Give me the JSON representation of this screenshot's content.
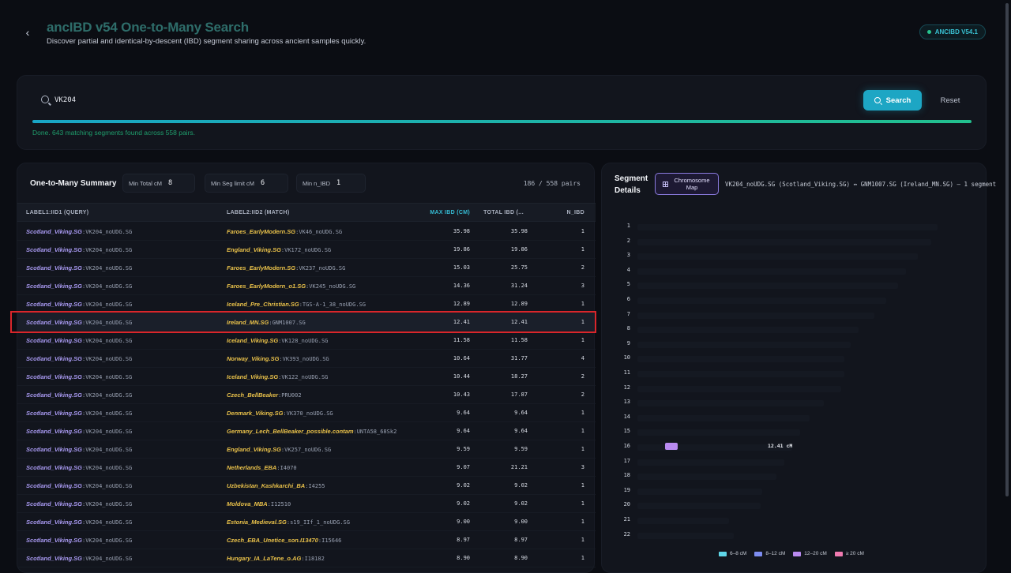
{
  "header": {
    "title": "ancIBD v54 One-to-Many Search",
    "subtitle": "Discover partial and identical-by-descent (IBD) segment sharing across ancient samples quickly.",
    "version_badge": "ANCIBD V54.1"
  },
  "search": {
    "value": "VK204",
    "search_label": "Search",
    "reset_label": "Reset",
    "progress": 1.0,
    "status": "Done. 643 matching segments found across 558 pairs."
  },
  "summary": {
    "title": "One-to-Many Summary",
    "filters": [
      {
        "label": "Min Total cM",
        "value": "8"
      },
      {
        "label": "Min Seg limit cM",
        "value": "6"
      },
      {
        "label": "Min n_IBD",
        "value": "1"
      }
    ],
    "pair_count": "186 / 558 pairs",
    "columns": [
      "LABEL1:IID1 (QUERY)",
      "LABEL2:IID2 (MATCH)",
      "MAX IBD (CM)",
      "TOTAL IBD (...",
      "N_IBD"
    ],
    "rows": [
      {
        "q_label": "Scotland_Viking.SG",
        "q_iid": "VK204_noUDG.SG",
        "m_label": "Faroes_EarlyModern.SG",
        "m_iid": "VK46_noUDG.SG",
        "max": "35.98",
        "total": "35.98",
        "n": "1"
      },
      {
        "q_label": "Scotland_Viking.SG",
        "q_iid": "VK204_noUDG.SG",
        "m_label": "England_Viking.SG",
        "m_iid": "VK172_noUDG.SG",
        "max": "19.86",
        "total": "19.86",
        "n": "1"
      },
      {
        "q_label": "Scotland_Viking.SG",
        "q_iid": "VK204_noUDG.SG",
        "m_label": "Faroes_EarlyModern.SG",
        "m_iid": "VK237_noUDG.SG",
        "max": "15.03",
        "total": "25.75",
        "n": "2"
      },
      {
        "q_label": "Scotland_Viking.SG",
        "q_iid": "VK204_noUDG.SG",
        "m_label": "Faroes_EarlyModern_o1.SG",
        "m_iid": "VK245_noUDG.SG",
        "max": "14.36",
        "total": "31.24",
        "n": "3"
      },
      {
        "q_label": "Scotland_Viking.SG",
        "q_iid": "VK204_noUDG.SG",
        "m_label": "Iceland_Pre_Christian.SG",
        "m_iid": "TGS-A-1_38_noUDG.SG",
        "max": "12.89",
        "total": "12.89",
        "n": "1"
      },
      {
        "q_label": "Scotland_Viking.SG",
        "q_iid": "VK204_noUDG.SG",
        "m_label": "Ireland_MN.SG",
        "m_iid": "GNM1007.SG",
        "max": "12.41",
        "total": "12.41",
        "n": "1"
      },
      {
        "q_label": "Scotland_Viking.SG",
        "q_iid": "VK204_noUDG.SG",
        "m_label": "Iceland_Viking.SG",
        "m_iid": "VK128_noUDG.SG",
        "max": "11.58",
        "total": "11.58",
        "n": "1"
      },
      {
        "q_label": "Scotland_Viking.SG",
        "q_iid": "VK204_noUDG.SG",
        "m_label": "Norway_Viking.SG",
        "m_iid": "VK393_noUDG.SG",
        "max": "10.64",
        "total": "31.77",
        "n": "4"
      },
      {
        "q_label": "Scotland_Viking.SG",
        "q_iid": "VK204_noUDG.SG",
        "m_label": "Iceland_Viking.SG",
        "m_iid": "VK122_noUDG.SG",
        "max": "10.44",
        "total": "18.27",
        "n": "2"
      },
      {
        "q_label": "Scotland_Viking.SG",
        "q_iid": "VK204_noUDG.SG",
        "m_label": "Czech_BellBeaker",
        "m_iid": "PRU002",
        "max": "10.43",
        "total": "17.87",
        "n": "2"
      },
      {
        "q_label": "Scotland_Viking.SG",
        "q_iid": "VK204_noUDG.SG",
        "m_label": "Denmark_Viking.SG",
        "m_iid": "VK370_noUDG.SG",
        "max": "9.64",
        "total": "9.64",
        "n": "1"
      },
      {
        "q_label": "Scotland_Viking.SG",
        "q_iid": "VK204_noUDG.SG",
        "m_label": "Germany_Lech_BellBeaker_possible.contam",
        "m_iid": "UNTA58_68Sk2",
        "max": "9.64",
        "total": "9.64",
        "n": "1"
      },
      {
        "q_label": "Scotland_Viking.SG",
        "q_iid": "VK204_noUDG.SG",
        "m_label": "England_Viking.SG",
        "m_iid": "VK257_noUDG.SG",
        "max": "9.59",
        "total": "9.59",
        "n": "1"
      },
      {
        "q_label": "Scotland_Viking.SG",
        "q_iid": "VK204_noUDG.SG",
        "m_label": "Netherlands_EBA",
        "m_iid": "I4070",
        "max": "9.07",
        "total": "21.21",
        "n": "3"
      },
      {
        "q_label": "Scotland_Viking.SG",
        "q_iid": "VK204_noUDG.SG",
        "m_label": "Uzbekistan_Kashkarchi_BA",
        "m_iid": "I4255",
        "max": "9.02",
        "total": "9.02",
        "n": "1"
      },
      {
        "q_label": "Scotland_Viking.SG",
        "q_iid": "VK204_noUDG.SG",
        "m_label": "Moldova_MBA",
        "m_iid": "I12510",
        "max": "9.02",
        "total": "9.02",
        "n": "1"
      },
      {
        "q_label": "Scotland_Viking.SG",
        "q_iid": "VK204_noUDG.SG",
        "m_label": "Estonia_Medieval.SG",
        "m_iid": "s19_IIf_1_noUDG.SG",
        "max": "9.00",
        "total": "9.00",
        "n": "1"
      },
      {
        "q_label": "Scotland_Viking.SG",
        "q_iid": "VK204_noUDG.SG",
        "m_label": "Czech_EBA_Unetice_son.I13470",
        "m_iid": "I15646",
        "max": "8.97",
        "total": "8.97",
        "n": "1"
      },
      {
        "q_label": "Scotland_Viking.SG",
        "q_iid": "VK204_noUDG.SG",
        "m_label": "Hungary_IA_LaTene_o.AG",
        "m_iid": "I18182",
        "max": "8.90",
        "total": "8.90",
        "n": "1"
      }
    ],
    "selected_index": 5
  },
  "segment": {
    "title": "Segment Details",
    "chromosome_map_label": "Chromosome Map",
    "pair_description": "VK204_noUDG.SG (Scotland_Viking.SG) ↔ GNM1007.SG (Ireland_MN.SG) — 1 segment",
    "chromosomes": [
      "1",
      "2",
      "3",
      "4",
      "5",
      "6",
      "7",
      "8",
      "9",
      "10",
      "11",
      "12",
      "13",
      "14",
      "15",
      "16",
      "17",
      "18",
      "19",
      "20",
      "21",
      "22"
    ],
    "segment_chromosome": "16",
    "segment_label": "12.41 cM",
    "legend": [
      {
        "label": "6–8 cM",
        "color": "#5fd6e8"
      },
      {
        "label": "8–12 cM",
        "color": "#7d8cf0"
      },
      {
        "label": "12–20 cM",
        "color": "#b98af0"
      },
      {
        "label": "≥ 20 cM",
        "color": "#f07ab0"
      }
    ]
  }
}
